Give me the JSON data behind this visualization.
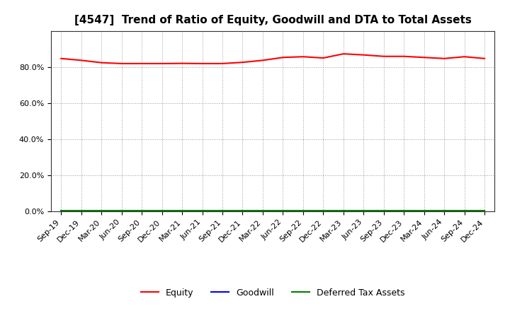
{
  "title": "[4547]  Trend of Ratio of Equity, Goodwill and DTA to Total Assets",
  "x_labels": [
    "Sep-19",
    "Dec-19",
    "Mar-20",
    "Jun-20",
    "Sep-20",
    "Dec-20",
    "Mar-21",
    "Jun-21",
    "Sep-21",
    "Dec-21",
    "Mar-22",
    "Jun-22",
    "Sep-22",
    "Dec-22",
    "Mar-23",
    "Jun-23",
    "Sep-23",
    "Dec-23",
    "Mar-24",
    "Jun-24",
    "Sep-24",
    "Dec-24"
  ],
  "equity": [
    0.848,
    0.838,
    0.825,
    0.82,
    0.82,
    0.82,
    0.821,
    0.82,
    0.82,
    0.827,
    0.838,
    0.854,
    0.858,
    0.851,
    0.874,
    0.868,
    0.86,
    0.86,
    0.854,
    0.848,
    0.858,
    0.848
  ],
  "goodwill": [
    0.0,
    0.0,
    0.0,
    0.0,
    0.0,
    0.0,
    0.0,
    0.0,
    0.0,
    0.0,
    0.0,
    0.0,
    0.0,
    0.0,
    0.0,
    0.0,
    0.0,
    0.0,
    0.0,
    0.0,
    0.0,
    0.0
  ],
  "dta": [
    0.005,
    0.005,
    0.005,
    0.005,
    0.005,
    0.005,
    0.005,
    0.005,
    0.005,
    0.005,
    0.005,
    0.005,
    0.005,
    0.005,
    0.005,
    0.005,
    0.005,
    0.005,
    0.005,
    0.005,
    0.005,
    0.005
  ],
  "equity_color": "#FF0000",
  "goodwill_color": "#0000FF",
  "dta_color": "#008000",
  "ylim": [
    0.0,
    1.0
  ],
  "yticks": [
    0.0,
    0.2,
    0.4,
    0.6,
    0.8
  ],
  "background_color": "#FFFFFF",
  "grid_color": "#999999",
  "title_fontsize": 11,
  "tick_fontsize": 8,
  "legend_labels": [
    "Equity",
    "Goodwill",
    "Deferred Tax Assets"
  ]
}
